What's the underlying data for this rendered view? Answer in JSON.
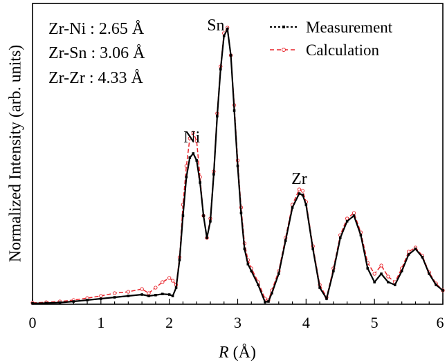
{
  "chart_data": {
    "type": "line",
    "xlabel_italic": "R",
    "xlabel_unit": " (Å)",
    "ylabel": "Normalized Intensity (arb. units)",
    "xlim": [
      0,
      6
    ],
    "ylim": [
      0,
      1
    ],
    "xticks": [
      "0",
      "1",
      "2",
      "3",
      "4",
      "5",
      "6"
    ],
    "y_ticks_labeled": false,
    "grid": false,
    "legend_position": "top-right",
    "bond_annotations": [
      "Zr-Ni : 2.65 Å",
      "Zr-Sn : 3.06 Å",
      "Zr-Zr : 4.33 Å"
    ],
    "peak_labels": [
      {
        "text": "Ni",
        "x": 2.33,
        "y": 0.585
      },
      {
        "text": "Sn",
        "x": 2.68,
        "y": 0.99
      },
      {
        "text": "Zr",
        "x": 3.9,
        "y": 0.435
      }
    ],
    "series": [
      {
        "name": "Measurement",
        "color": "#000000",
        "marker": "filled-square",
        "x": [
          0,
          0.2,
          0.4,
          0.6,
          0.8,
          1.0,
          1.2,
          1.4,
          1.6,
          1.7,
          1.8,
          1.9,
          2.0,
          2.05,
          2.1,
          2.15,
          2.2,
          2.25,
          2.3,
          2.35,
          2.4,
          2.45,
          2.5,
          2.55,
          2.6,
          2.65,
          2.7,
          2.75,
          2.8,
          2.85,
          2.9,
          2.95,
          3.0,
          3.05,
          3.1,
          3.15,
          3.2,
          3.3,
          3.4,
          3.45,
          3.5,
          3.6,
          3.7,
          3.8,
          3.9,
          3.95,
          4.0,
          4.1,
          4.2,
          4.3,
          4.4,
          4.5,
          4.6,
          4.7,
          4.8,
          4.9,
          5.0,
          5.1,
          5.2,
          5.3,
          5.4,
          5.5,
          5.6,
          5.7,
          5.8,
          5.9,
          6.0
        ],
        "y": [
          0.003,
          0.004,
          0.006,
          0.01,
          0.015,
          0.02,
          0.025,
          0.03,
          0.035,
          0.03,
          0.033,
          0.037,
          0.035,
          0.03,
          0.06,
          0.16,
          0.32,
          0.46,
          0.53,
          0.545,
          0.52,
          0.44,
          0.32,
          0.24,
          0.3,
          0.47,
          0.68,
          0.85,
          0.97,
          0.995,
          0.9,
          0.7,
          0.5,
          0.33,
          0.2,
          0.145,
          0.12,
          0.07,
          0.008,
          0.01,
          0.04,
          0.11,
          0.23,
          0.35,
          0.4,
          0.395,
          0.36,
          0.2,
          0.06,
          0.02,
          0.12,
          0.24,
          0.3,
          0.32,
          0.25,
          0.13,
          0.08,
          0.11,
          0.08,
          0.07,
          0.12,
          0.18,
          0.2,
          0.17,
          0.11,
          0.07,
          0.05
        ]
      },
      {
        "name": "Calculation",
        "color": "#e8232a",
        "marker": "open-circle",
        "x": [
          0,
          0.2,
          0.4,
          0.6,
          0.8,
          1.0,
          1.2,
          1.4,
          1.6,
          1.7,
          1.8,
          1.9,
          2.0,
          2.05,
          2.1,
          2.15,
          2.2,
          2.25,
          2.3,
          2.35,
          2.4,
          2.45,
          2.5,
          2.55,
          2.6,
          2.65,
          2.7,
          2.75,
          2.8,
          2.85,
          2.9,
          2.95,
          3.0,
          3.05,
          3.1,
          3.15,
          3.2,
          3.3,
          3.4,
          3.45,
          3.5,
          3.6,
          3.7,
          3.8,
          3.9,
          3.95,
          4.0,
          4.1,
          4.2,
          4.3,
          4.4,
          4.5,
          4.6,
          4.7,
          4.8,
          4.9,
          5.0,
          5.1,
          5.2,
          5.3,
          5.4,
          5.5,
          5.6,
          5.7,
          5.8,
          5.9,
          6.0
        ],
        "y": [
          0.005,
          0.007,
          0.01,
          0.015,
          0.022,
          0.03,
          0.04,
          0.045,
          0.055,
          0.04,
          0.06,
          0.08,
          0.095,
          0.085,
          0.07,
          0.17,
          0.36,
          0.5,
          0.6,
          0.62,
          0.59,
          0.46,
          0.32,
          0.24,
          0.31,
          0.48,
          0.69,
          0.86,
          0.98,
          1.0,
          0.9,
          0.72,
          0.52,
          0.35,
          0.22,
          0.16,
          0.13,
          0.08,
          0.02,
          0.015,
          0.05,
          0.12,
          0.24,
          0.36,
          0.415,
          0.41,
          0.37,
          0.21,
          0.07,
          0.025,
          0.13,
          0.25,
          0.31,
          0.33,
          0.26,
          0.15,
          0.11,
          0.14,
          0.1,
          0.08,
          0.13,
          0.19,
          0.205,
          0.175,
          0.115,
          0.075,
          0.05
        ]
      }
    ]
  }
}
